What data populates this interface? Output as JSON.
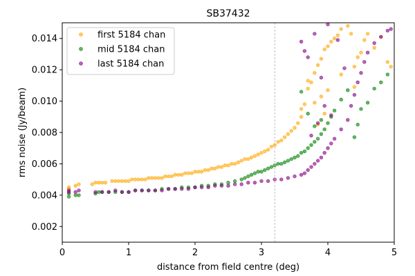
{
  "chart_data": {
    "type": "scatter",
    "title": "SB37432",
    "xlabel": "distance from field centre (deg)",
    "ylabel": "rms noise (Jy/beam)",
    "xlim": [
      0,
      5
    ],
    "ylim": [
      0.001,
      0.015
    ],
    "xticks": [
      0,
      1,
      2,
      3,
      4,
      5
    ],
    "xtick_labels": [
      "0",
      "1",
      "2",
      "3",
      "4",
      "5"
    ],
    "yticks": [
      0.002,
      0.004,
      0.006,
      0.008,
      0.01,
      0.012,
      0.014
    ],
    "ytick_labels": [
      "0.002",
      "0.004",
      "0.006",
      "0.008",
      "0.010",
      "0.012",
      "0.014"
    ],
    "grid": false,
    "legend_position": "top-left",
    "vline": {
      "x": 3.2,
      "style": "dashed",
      "color": "#b0b0b0"
    },
    "series": [
      {
        "name": "first 5184 chan",
        "color": "#ffa500",
        "points": [
          [
            0.1,
            0.0044
          ],
          [
            0.1,
            0.0045
          ],
          [
            0.2,
            0.0046
          ],
          [
            0.25,
            0.0047
          ],
          [
            0.45,
            0.0047
          ],
          [
            0.5,
            0.0048
          ],
          [
            0.55,
            0.0048
          ],
          [
            0.6,
            0.0048
          ],
          [
            0.65,
            0.0048
          ],
          [
            0.75,
            0.0049
          ],
          [
            0.8,
            0.0049
          ],
          [
            0.85,
            0.0049
          ],
          [
            0.9,
            0.0049
          ],
          [
            0.95,
            0.0049
          ],
          [
            1.0,
            0.0049
          ],
          [
            1.05,
            0.005
          ],
          [
            1.1,
            0.005
          ],
          [
            1.15,
            0.005
          ],
          [
            1.2,
            0.005
          ],
          [
            1.25,
            0.005
          ],
          [
            1.3,
            0.0051
          ],
          [
            1.35,
            0.0051
          ],
          [
            1.4,
            0.0051
          ],
          [
            1.45,
            0.0051
          ],
          [
            1.5,
            0.0051
          ],
          [
            1.55,
            0.0052
          ],
          [
            1.6,
            0.0052
          ],
          [
            1.65,
            0.0052
          ],
          [
            1.7,
            0.0053
          ],
          [
            1.75,
            0.0053
          ],
          [
            1.8,
            0.0053
          ],
          [
            1.85,
            0.0054
          ],
          [
            1.9,
            0.0054
          ],
          [
            1.95,
            0.0054
          ],
          [
            2.0,
            0.0055
          ],
          [
            2.05,
            0.0055
          ],
          [
            2.1,
            0.0055
          ],
          [
            2.15,
            0.0056
          ],
          [
            2.2,
            0.0056
          ],
          [
            2.25,
            0.0057
          ],
          [
            2.3,
            0.0057
          ],
          [
            2.35,
            0.0058
          ],
          [
            2.4,
            0.0058
          ],
          [
            2.45,
            0.0059
          ],
          [
            2.5,
            0.0059
          ],
          [
            2.55,
            0.006
          ],
          [
            2.6,
            0.006
          ],
          [
            2.65,
            0.0061
          ],
          [
            2.7,
            0.0062
          ],
          [
            2.75,
            0.0063
          ],
          [
            2.8,
            0.0063
          ],
          [
            2.85,
            0.0064
          ],
          [
            2.9,
            0.0065
          ],
          [
            2.95,
            0.0066
          ],
          [
            3.0,
            0.0067
          ],
          [
            3.05,
            0.0068
          ],
          [
            3.1,
            0.0069
          ],
          [
            3.15,
            0.0071
          ],
          [
            3.2,
            0.0072
          ],
          [
            3.25,
            0.0074
          ],
          [
            3.3,
            0.0075
          ],
          [
            3.35,
            0.0077
          ],
          [
            3.4,
            0.0079
          ],
          [
            3.45,
            0.0081
          ],
          [
            3.5,
            0.0083
          ],
          [
            3.55,
            0.0086
          ],
          [
            3.6,
            0.009
          ],
          [
            3.65,
            0.0098
          ],
          [
            3.7,
            0.0108
          ],
          [
            3.75,
            0.0112
          ],
          [
            3.8,
            0.0118
          ],
          [
            3.85,
            0.0123
          ],
          [
            3.9,
            0.0127
          ],
          [
            3.95,
            0.0133
          ],
          [
            4.0,
            0.0135
          ],
          [
            4.05,
            0.0138
          ],
          [
            4.1,
            0.014
          ],
          [
            4.15,
            0.0142
          ],
          [
            4.2,
            0.0146
          ],
          [
            4.3,
            0.0148
          ],
          [
            4.35,
            0.0143
          ],
          [
            4.4,
            0.0122
          ],
          [
            4.45,
            0.0128
          ],
          [
            4.5,
            0.0131
          ],
          [
            4.55,
            0.0139
          ],
          [
            4.6,
            0.0143
          ],
          [
            4.7,
            0.0134
          ],
          [
            4.8,
            0.0141
          ],
          [
            4.9,
            0.0125
          ],
          [
            4.95,
            0.0122
          ],
          [
            3.6,
            0.0095
          ],
          [
            3.8,
            0.0099
          ],
          [
            3.9,
            0.0103
          ],
          [
            4.0,
            0.0107
          ],
          [
            3.7,
            0.0113
          ],
          [
            4.2,
            0.0117
          ],
          [
            4.4,
            0.0109
          ],
          [
            3.85,
            0.0085
          ],
          [
            3.95,
            0.0092
          ]
        ]
      },
      {
        "name": "mid 5184 chan",
        "color": "#008000",
        "points": [
          [
            0.1,
            0.0039
          ],
          [
            0.1,
            0.0041
          ],
          [
            0.2,
            0.004
          ],
          [
            0.25,
            0.004
          ],
          [
            0.5,
            0.0041
          ],
          [
            0.55,
            0.0042
          ],
          [
            0.6,
            0.0042
          ],
          [
            0.7,
            0.0042
          ],
          [
            0.8,
            0.0042
          ],
          [
            0.9,
            0.0042
          ],
          [
            1.0,
            0.0042
          ],
          [
            1.1,
            0.0043
          ],
          [
            1.2,
            0.0043
          ],
          [
            1.3,
            0.0043
          ],
          [
            1.4,
            0.0043
          ],
          [
            1.5,
            0.0044
          ],
          [
            1.6,
            0.0044
          ],
          [
            1.7,
            0.0044
          ],
          [
            1.8,
            0.0045
          ],
          [
            1.9,
            0.0045
          ],
          [
            2.0,
            0.0045
          ],
          [
            2.1,
            0.0046
          ],
          [
            2.2,
            0.0046
          ],
          [
            2.3,
            0.0047
          ],
          [
            2.4,
            0.0047
          ],
          [
            2.5,
            0.0048
          ],
          [
            2.6,
            0.0049
          ],
          [
            2.7,
            0.005
          ],
          [
            2.75,
            0.0051
          ],
          [
            2.8,
            0.0052
          ],
          [
            2.85,
            0.0053
          ],
          [
            2.9,
            0.0054
          ],
          [
            2.95,
            0.0055
          ],
          [
            3.0,
            0.0055
          ],
          [
            3.05,
            0.0056
          ],
          [
            3.1,
            0.0057
          ],
          [
            3.15,
            0.0058
          ],
          [
            3.2,
            0.0059
          ],
          [
            3.25,
            0.006
          ],
          [
            3.3,
            0.006
          ],
          [
            3.35,
            0.0061
          ],
          [
            3.4,
            0.0062
          ],
          [
            3.45,
            0.0063
          ],
          [
            3.5,
            0.0064
          ],
          [
            3.55,
            0.0065
          ],
          [
            3.6,
            0.0067
          ],
          [
            3.65,
            0.0068
          ],
          [
            3.7,
            0.007
          ],
          [
            3.75,
            0.0072
          ],
          [
            3.8,
            0.0074
          ],
          [
            3.85,
            0.0076
          ],
          [
            3.9,
            0.0079
          ],
          [
            3.95,
            0.0082
          ],
          [
            4.0,
            0.0086
          ],
          [
            4.05,
            0.009
          ],
          [
            4.1,
            0.0094
          ],
          [
            4.2,
            0.0101
          ],
          [
            4.3,
            0.0107
          ],
          [
            4.4,
            0.0077
          ],
          [
            4.45,
            0.0085
          ],
          [
            4.5,
            0.0095
          ],
          [
            4.6,
            0.0099
          ],
          [
            4.7,
            0.0108
          ],
          [
            4.8,
            0.0112
          ],
          [
            4.9,
            0.0117
          ],
          [
            3.6,
            0.0106
          ],
          [
            3.7,
            0.0092
          ],
          [
            3.8,
            0.0084
          ],
          [
            3.9,
            0.0088
          ]
        ]
      },
      {
        "name": "last 5184 chan",
        "color": "#800080",
        "points": [
          [
            0.1,
            0.0042
          ],
          [
            0.1,
            0.0043
          ],
          [
            0.2,
            0.0042
          ],
          [
            0.25,
            0.0043
          ],
          [
            0.5,
            0.0042
          ],
          [
            0.6,
            0.0042
          ],
          [
            0.7,
            0.0042
          ],
          [
            0.8,
            0.0043
          ],
          [
            0.9,
            0.0042
          ],
          [
            1.0,
            0.0042
          ],
          [
            1.1,
            0.0043
          ],
          [
            1.2,
            0.0043
          ],
          [
            1.3,
            0.0043
          ],
          [
            1.4,
            0.0043
          ],
          [
            1.5,
            0.0043
          ],
          [
            1.6,
            0.0044
          ],
          [
            1.7,
            0.0044
          ],
          [
            1.8,
            0.0044
          ],
          [
            1.9,
            0.0044
          ],
          [
            2.0,
            0.0045
          ],
          [
            2.1,
            0.0045
          ],
          [
            2.2,
            0.0045
          ],
          [
            2.3,
            0.0046
          ],
          [
            2.4,
            0.0046
          ],
          [
            2.5,
            0.0046
          ],
          [
            2.6,
            0.0047
          ],
          [
            2.7,
            0.0047
          ],
          [
            2.8,
            0.0048
          ],
          [
            2.9,
            0.0048
          ],
          [
            3.0,
            0.0049
          ],
          [
            3.1,
            0.0049
          ],
          [
            3.2,
            0.005
          ],
          [
            3.3,
            0.005
          ],
          [
            3.4,
            0.0051
          ],
          [
            3.5,
            0.0052
          ],
          [
            3.6,
            0.0053
          ],
          [
            3.65,
            0.0054
          ],
          [
            3.7,
            0.0056
          ],
          [
            3.75,
            0.0058
          ],
          [
            3.8,
            0.006
          ],
          [
            3.85,
            0.0062
          ],
          [
            3.9,
            0.0064
          ],
          [
            3.95,
            0.0067
          ],
          [
            4.0,
            0.007
          ],
          [
            4.05,
            0.0073
          ],
          [
            4.1,
            0.0076
          ],
          [
            4.2,
            0.0082
          ],
          [
            4.3,
            0.0088
          ],
          [
            4.35,
            0.0097
          ],
          [
            4.4,
            0.0104
          ],
          [
            4.45,
            0.0112
          ],
          [
            4.5,
            0.0118
          ],
          [
            4.55,
            0.0125
          ],
          [
            4.6,
            0.0131
          ],
          [
            4.7,
            0.0137
          ],
          [
            4.8,
            0.0141
          ],
          [
            4.9,
            0.0145
          ],
          [
            4.95,
            0.0146
          ],
          [
            3.6,
            0.0138
          ],
          [
            3.65,
            0.0132
          ],
          [
            3.7,
            0.0128
          ],
          [
            3.8,
            0.0143
          ],
          [
            3.9,
            0.0115
          ],
          [
            4.0,
            0.0149
          ],
          [
            4.15,
            0.0139
          ],
          [
            4.25,
            0.0121
          ],
          [
            3.75,
            0.0078
          ],
          [
            3.85,
            0.0086
          ],
          [
            3.95,
            0.0097
          ],
          [
            4.05,
            0.0091
          ]
        ]
      }
    ]
  }
}
